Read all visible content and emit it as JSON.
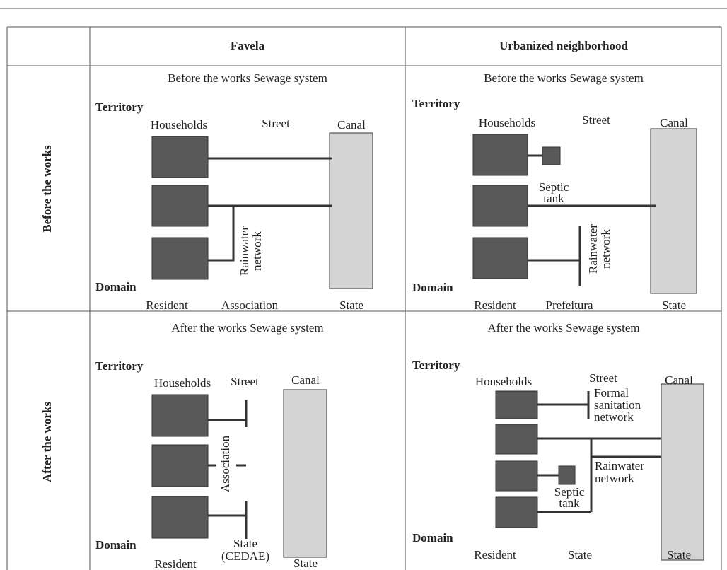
{
  "table": {
    "header": [
      "Favela",
      "Urbanized neighborhood"
    ],
    "rows": [
      {
        "label": "Before the works",
        "cells": [
          {
            "title": "Before the works Sewage system",
            "territory": "Territory",
            "domain": "Domain",
            "labels": [
              "Households",
              "Street",
              "Canal",
              "Rainwater",
              "network",
              "Resident",
              "Association",
              "State"
            ]
          },
          {
            "title": "Before the works Sewage system",
            "territory": "Territory",
            "domain": "Domain",
            "labels": [
              "Households",
              "Street",
              "Canal",
              "Septic",
              "tank",
              "Rainwater",
              "network",
              "Resident",
              "Prefeitura",
              "State"
            ]
          }
        ]
      },
      {
        "label": "After the works",
        "cells": [
          {
            "title": "After the works Sewage system",
            "territory": "Territory",
            "domain": "Domain",
            "labels": [
              "Households",
              "Street",
              "Canal",
              "Association",
              "State",
              "(CEDAE)",
              "Resident",
              "State"
            ]
          },
          {
            "title": "After the works Sewage system",
            "territory": "Territory",
            "domain": "Domain",
            "labels": [
              "Households",
              "Street",
              "Canal",
              "Formal",
              "sanitation",
              "network",
              "Rainwater",
              "network",
              "Septic",
              "tank",
              "Resident",
              "State",
              "State"
            ]
          }
        ]
      }
    ]
  }
}
